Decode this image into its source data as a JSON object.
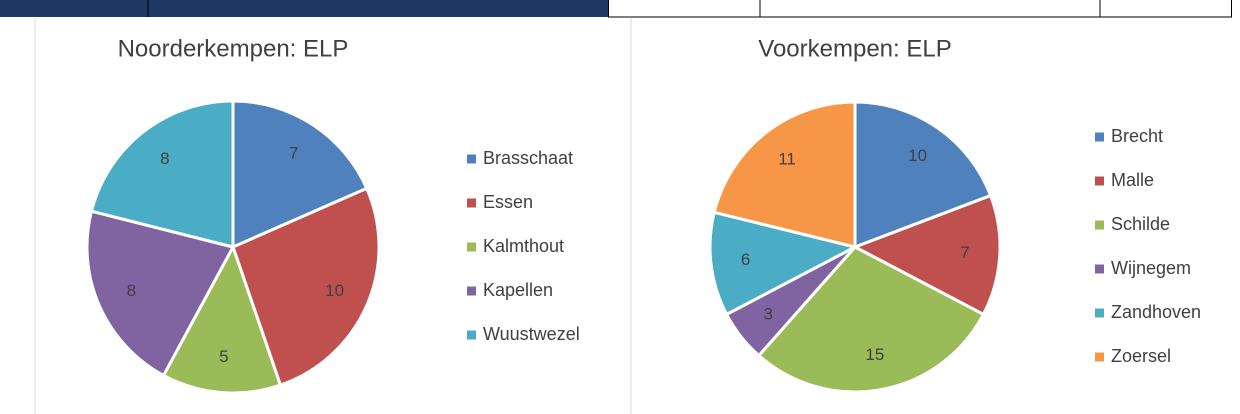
{
  "chart_data": [
    {
      "type": "pie",
      "title": "Noorderkempen: ELP",
      "categories": [
        "Brasschaat",
        "Essen",
        "Kalmthout",
        "Kapellen",
        "Wuustwezel"
      ],
      "values": [
        7,
        10,
        5,
        8,
        8
      ],
      "colors": [
        "#4f81bd",
        "#c0504d",
        "#9bbb59",
        "#8064a2",
        "#4bacc6"
      ],
      "legend": "right"
    },
    {
      "type": "pie",
      "title": "Voorkempen: ELP",
      "categories": [
        "Brecht",
        "Malle",
        "Schilde",
        "Wijnegem",
        "Zandhoven",
        "Zoersel"
      ],
      "values": [
        10,
        7,
        15,
        3,
        6,
        11
      ],
      "colors": [
        "#4f81bd",
        "#c0504d",
        "#9bbb59",
        "#8064a2",
        "#4bacc6",
        "#f79646"
      ],
      "legend": "right"
    }
  ]
}
